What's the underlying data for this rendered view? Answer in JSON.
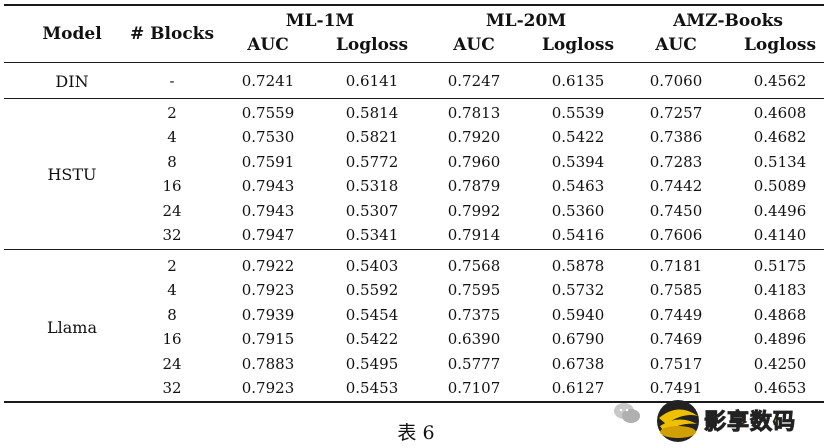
{
  "table": {
    "header": {
      "model": "Model",
      "blocks": "# Blocks",
      "datasets": [
        "ML-1M",
        "ML-20M",
        "AMZ-Books"
      ],
      "metrics": [
        "AUC",
        "Logloss",
        "AUC",
        "Logloss",
        "AUC",
        "Logloss"
      ]
    },
    "groups": [
      {
        "model": "DIN",
        "rows": [
          {
            "blocks": "-",
            "values": [
              "0.7241",
              "0.6141",
              "0.7247",
              "0.6135",
              "0.7060",
              "0.4562"
            ]
          }
        ]
      },
      {
        "model": "HSTU",
        "rows": [
          {
            "blocks": "2",
            "values": [
              "0.7559",
              "0.5814",
              "0.7813",
              "0.5539",
              "0.7257",
              "0.4608"
            ]
          },
          {
            "blocks": "4",
            "values": [
              "0.7530",
              "0.5821",
              "0.7920",
              "0.5422",
              "0.7386",
              "0.4682"
            ]
          },
          {
            "blocks": "8",
            "values": [
              "0.7591",
              "0.5772",
              "0.7960",
              "0.5394",
              "0.7283",
              "0.5134"
            ]
          },
          {
            "blocks": "16",
            "values": [
              "0.7943",
              "0.5318",
              "0.7879",
              "0.5463",
              "0.7442",
              "0.5089"
            ]
          },
          {
            "blocks": "24",
            "values": [
              "0.7943",
              "0.5307",
              "0.7992",
              "0.5360",
              "0.7450",
              "0.4496"
            ]
          },
          {
            "blocks": "32",
            "values": [
              "0.7947",
              "0.5341",
              "0.7914",
              "0.5416",
              "0.7606",
              "0.4140"
            ]
          }
        ]
      },
      {
        "model": "Llama",
        "rows": [
          {
            "blocks": "2",
            "values": [
              "0.7922",
              "0.5403",
              "0.7568",
              "0.5878",
              "0.7181",
              "0.5175"
            ]
          },
          {
            "blocks": "4",
            "values": [
              "0.7923",
              "0.5592",
              "0.7595",
              "0.5732",
              "0.7585",
              "0.4183"
            ]
          },
          {
            "blocks": "8",
            "values": [
              "0.7939",
              "0.5454",
              "0.7375",
              "0.5940",
              "0.7449",
              "0.4868"
            ]
          },
          {
            "blocks": "16",
            "values": [
              "0.7915",
              "0.5422",
              "0.6390",
              "0.6790",
              "0.7469",
              "0.4896"
            ]
          },
          {
            "blocks": "24",
            "values": [
              "0.7883",
              "0.5495",
              "0.5777",
              "0.6738",
              "0.7517",
              "0.4250"
            ]
          },
          {
            "blocks": "32",
            "values": [
              "0.7923",
              "0.5453",
              "0.7107",
              "0.6127",
              "0.7491",
              "0.4653"
            ]
          }
        ]
      }
    ]
  },
  "caption": "表 6",
  "watermark": {
    "text": "影享数码",
    "icon": "wechat-icon",
    "logo": "watermark-logo"
  }
}
